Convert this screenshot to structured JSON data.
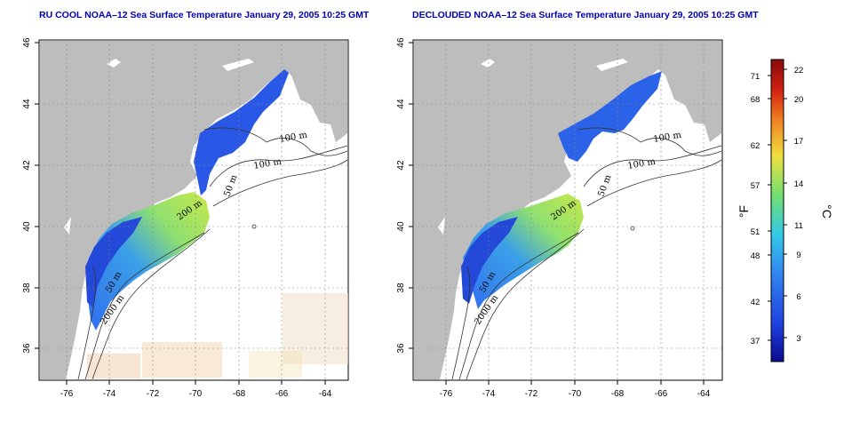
{
  "left_map": {
    "title": "RU COOL NOAA–12 Sea Surface Temperature January 29, 2005 10:25 GMT",
    "x_ticks": [
      "-76",
      "-74",
      "-72",
      "-70",
      "-68",
      "-66",
      "-64"
    ],
    "y_ticks": [
      "36",
      "38",
      "40",
      "42",
      "44",
      "46"
    ],
    "contour_labels": [
      "100 m",
      "100 m",
      "50 m",
      "200 m",
      "50 m",
      "2000 m"
    ]
  },
  "right_map": {
    "title": "DECLOUDED NOAA–12 Sea Surface Temperature January 29, 2005 10:25 GMT",
    "x_ticks": [
      "-76",
      "-74",
      "-72",
      "-70",
      "-68",
      "-66",
      "-64"
    ],
    "y_ticks": [
      "36",
      "38",
      "40",
      "42",
      "44",
      "46"
    ],
    "contour_labels": [
      "100 m",
      "100 m",
      "50 m",
      "200 m",
      "50 m",
      "2000 m"
    ]
  },
  "colorbar": {
    "fahrenheit_label": "°F",
    "celsius_label": "°C",
    "fahrenheit_ticks": [
      "71",
      "68",
      "62",
      "57",
      "51",
      "48",
      "42",
      "37"
    ],
    "celsius_ticks": [
      "22",
      "20",
      "17",
      "14",
      "11",
      "9",
      "6",
      "3"
    ],
    "colors": [
      "#0a0a8c",
      "#1f3fe0",
      "#2f80f0",
      "#32c8e8",
      "#70e070",
      "#f0e040",
      "#f08020",
      "#d02010",
      "#8b0a0a"
    ]
  },
  "colors": {
    "land": "#bdbdbd",
    "sea_cold": "#2a5ee8",
    "sea_warm": "#9ee060",
    "title": "#0000b0"
  }
}
